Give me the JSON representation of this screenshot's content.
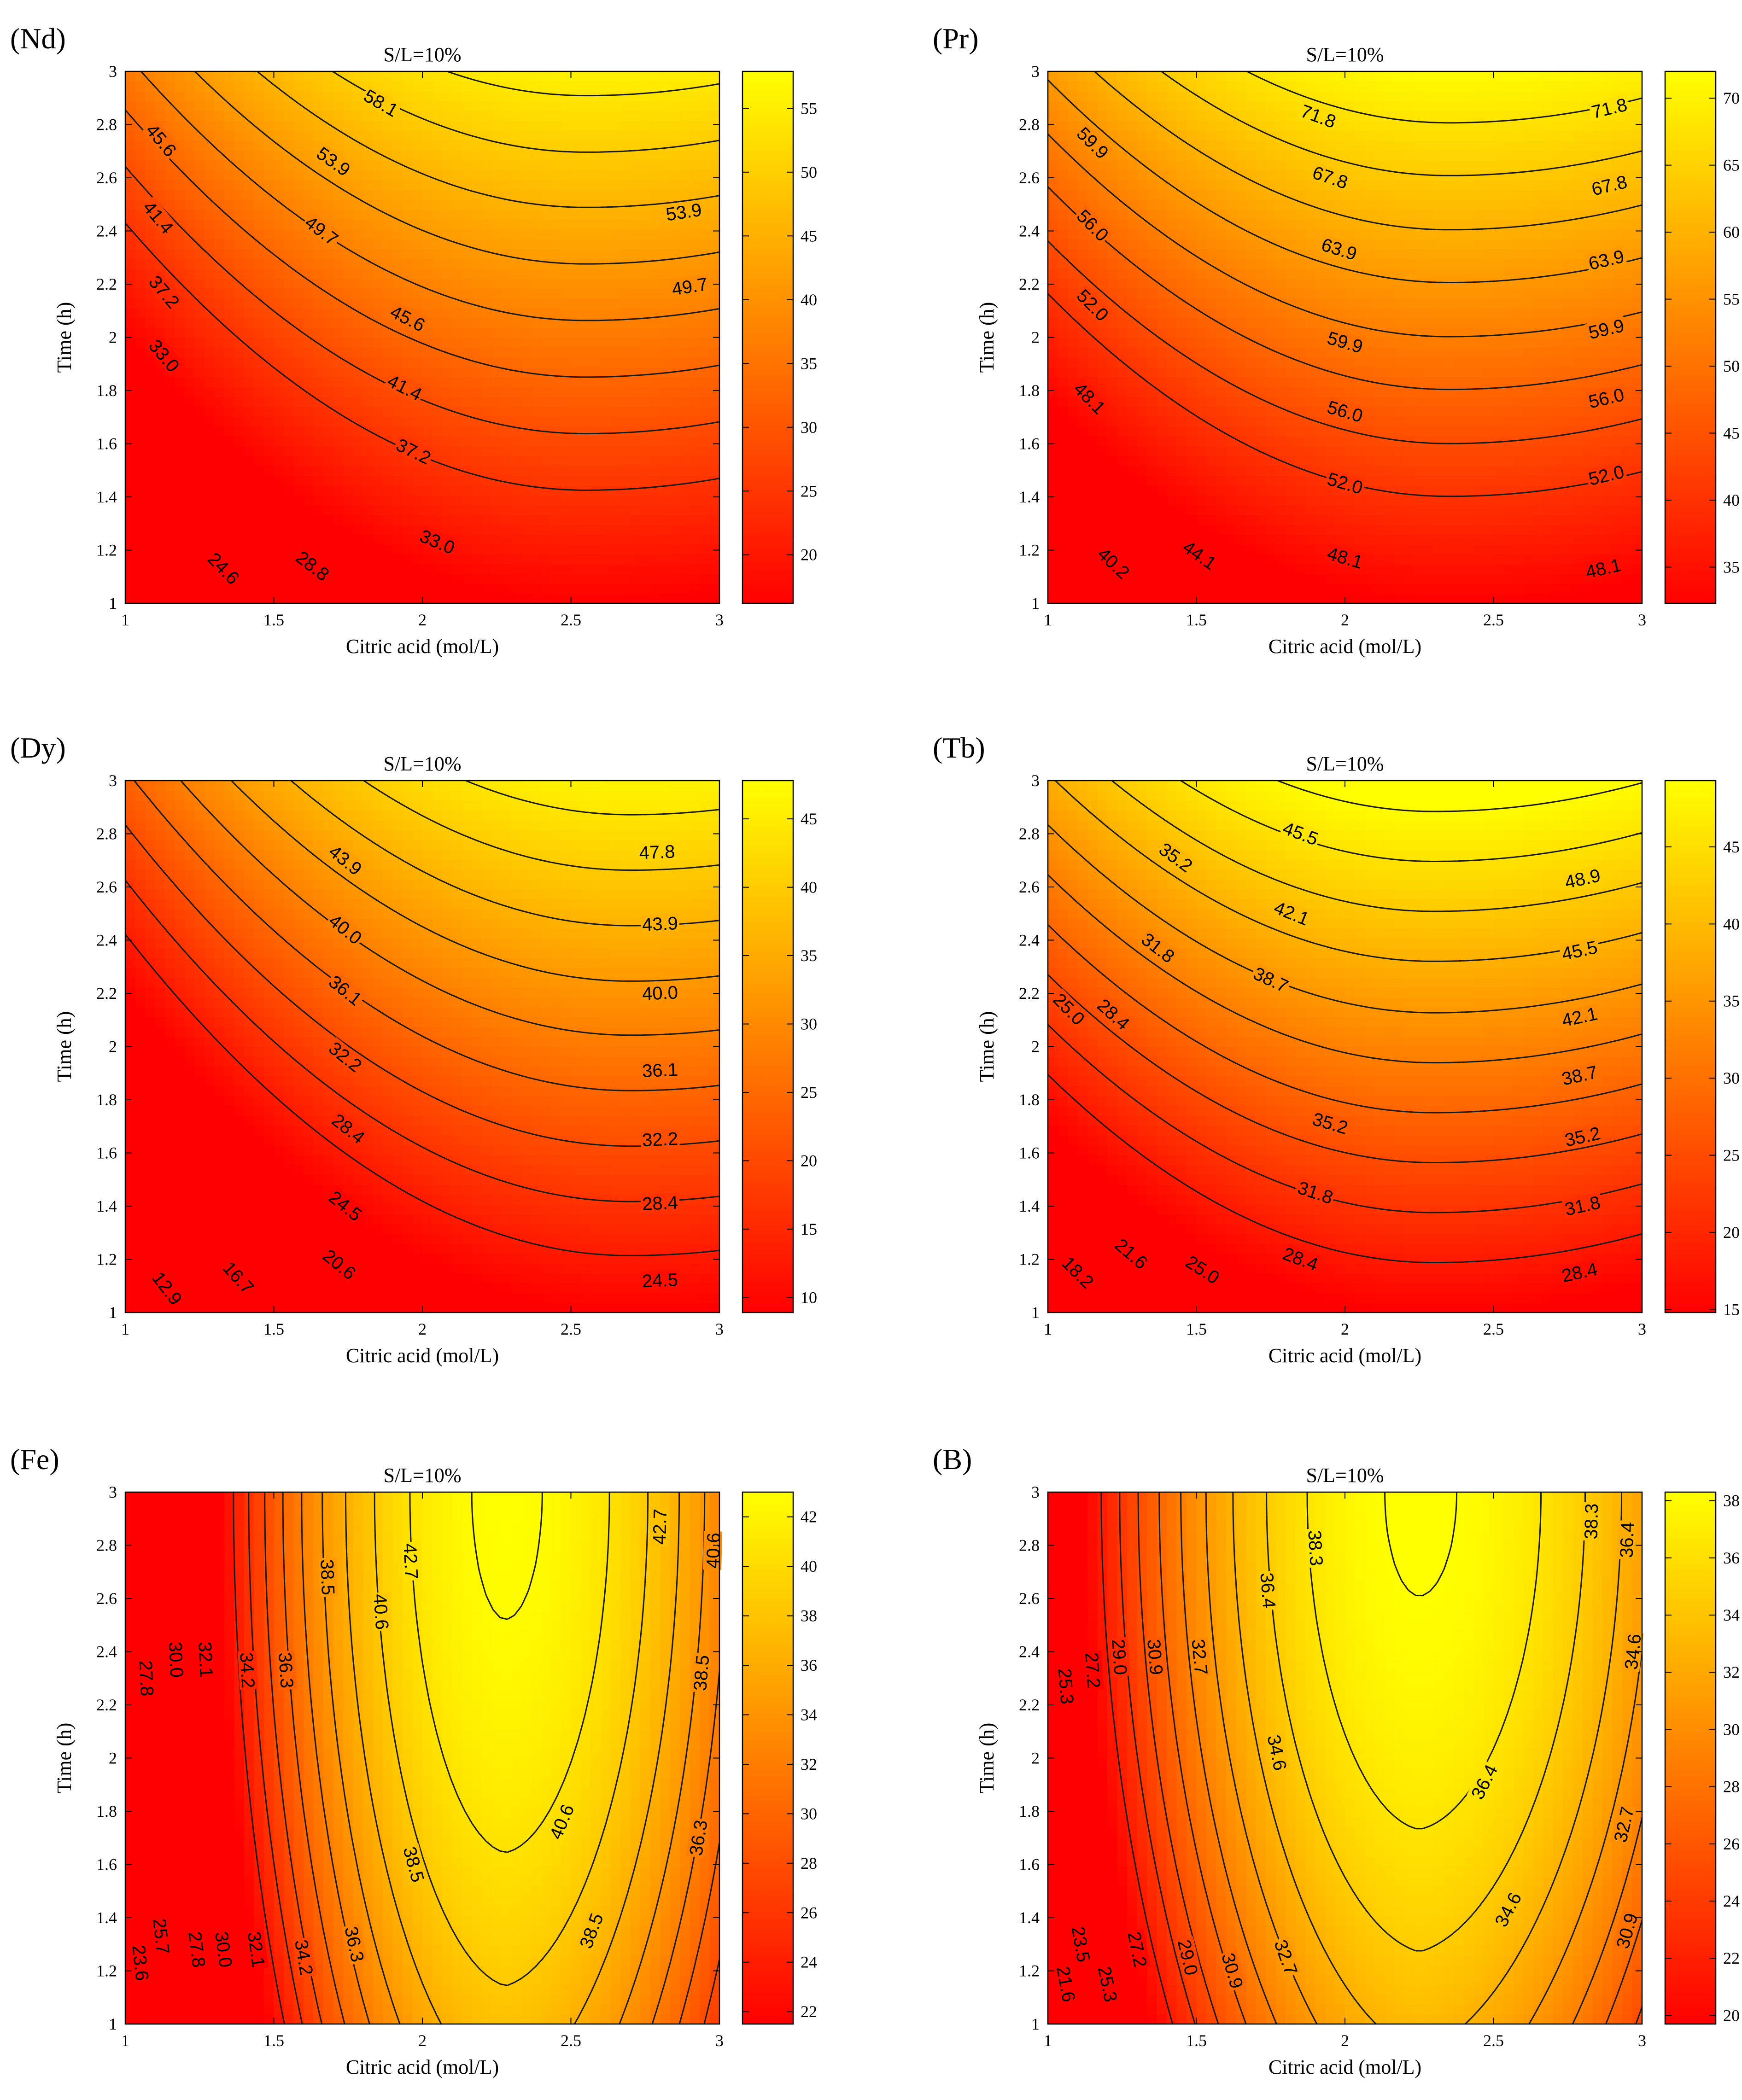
{
  "chart_data": [
    {
      "type": "contour",
      "panel_label": "(Nd)",
      "title": "S/L=10%",
      "xlabel": "Citric acid (mol/L)",
      "ylabel": "Time (h)",
      "xlim": [
        1,
        3
      ],
      "ylim": [
        1,
        3
      ],
      "x_ticks": [
        "1",
        "1.5",
        "2",
        "2.5",
        "3"
      ],
      "y_ticks": [
        "1",
        "1.2",
        "1.4",
        "1.6",
        "1.8",
        "2",
        "2.2",
        "2.4",
        "2.6",
        "2.8",
        "3"
      ],
      "model": {
        "ymin": 1.09,
        "ymax": 2.73,
        "xmin": 2.55,
        "bot": 16.2,
        "top": 55.7,
        "Eb": 24.3,
        "Et": 11.9
      },
      "contour_levels": [
        24.6,
        28.8,
        33.0,
        37.2,
        41.4,
        45.6,
        49.7,
        53.9,
        58.1
      ],
      "contour_labels": [
        {
          "text": "24.6",
          "x": 1.33,
          "y": 1.13
        },
        {
          "text": "28.8",
          "x": 1.63,
          "y": 1.14
        },
        {
          "text": "33.0",
          "x": 2.05,
          "y": 1.23
        },
        {
          "text": "37.2",
          "x": 1.97,
          "y": 1.57
        },
        {
          "text": "41.4",
          "x": 1.94,
          "y": 1.81
        },
        {
          "text": "45.6",
          "x": 1.95,
          "y": 2.07
        },
        {
          "text": "49.7",
          "x": 2.9,
          "y": 2.19
        },
        {
          "text": "53.9",
          "x": 2.88,
          "y": 2.47
        },
        {
          "text": "58.1",
          "x": 1.86,
          "y": 2.88
        },
        {
          "text": "45.6",
          "x": 1.12,
          "y": 2.74
        },
        {
          "text": "41.4",
          "x": 1.11,
          "y": 2.45
        },
        {
          "text": "37.2",
          "x": 1.13,
          "y": 2.17
        },
        {
          "text": "33.0",
          "x": 1.13,
          "y": 1.93
        },
        {
          "text": "49.7",
          "x": 1.66,
          "y": 2.4
        },
        {
          "text": "53.9",
          "x": 1.7,
          "y": 2.66
        }
      ],
      "colorbar": {
        "range": [
          16.2,
          57.9
        ],
        "ticks": [
          20,
          25,
          30,
          35,
          40,
          45,
          50,
          55
        ]
      }
    },
    {
      "type": "contour",
      "panel_label": "(Pr)",
      "title": "S/L=10%",
      "xlabel": "Citric acid (mol/L)",
      "ylabel": "Time (h)",
      "xlim": [
        1,
        3
      ],
      "ylim": [
        1,
        3
      ],
      "x_ticks": [
        "1",
        "1.5",
        "2",
        "2.5",
        "3"
      ],
      "y_ticks": [
        "1",
        "1.2",
        "1.4",
        "1.6",
        "1.8",
        "2",
        "2.2",
        "2.4",
        "2.6",
        "2.8",
        "3"
      ],
      "model": {
        "ymin": 1.05,
        "ymax": 2.72,
        "xmin": 2.35,
        "bot": 32.3,
        "top": 71.6,
        "Eb": 13.2,
        "Et": 7.1
      },
      "contour_levels": [
        40.2,
        44.1,
        48.1,
        52.0,
        56.0,
        59.9,
        63.9,
        67.8,
        71.8
      ],
      "contour_labels": [
        {
          "text": "40.2",
          "x": 1.22,
          "y": 1.15
        },
        {
          "text": "44.1",
          "x": 1.51,
          "y": 1.18
        },
        {
          "text": "48.1",
          "x": 2.0,
          "y": 1.17
        },
        {
          "text": "48.1",
          "x": 2.87,
          "y": 1.13
        },
        {
          "text": "52.0",
          "x": 2.0,
          "y": 1.45
        },
        {
          "text": "52.0",
          "x": 2.88,
          "y": 1.48
        },
        {
          "text": "56.0",
          "x": 2.0,
          "y": 1.72
        },
        {
          "text": "56.0",
          "x": 2.88,
          "y": 1.77
        },
        {
          "text": "59.9",
          "x": 2.0,
          "y": 1.98
        },
        {
          "text": "59.9",
          "x": 2.88,
          "y": 2.03
        },
        {
          "text": "63.9",
          "x": 1.98,
          "y": 2.33
        },
        {
          "text": "63.9",
          "x": 2.88,
          "y": 2.29
        },
        {
          "text": "67.8",
          "x": 1.95,
          "y": 2.6
        },
        {
          "text": "67.8",
          "x": 2.89,
          "y": 2.57
        },
        {
          "text": "71.8",
          "x": 1.91,
          "y": 2.83
        },
        {
          "text": "71.8",
          "x": 2.89,
          "y": 2.86
        },
        {
          "text": "48.1",
          "x": 1.14,
          "y": 1.77
        },
        {
          "text": "52.0",
          "x": 1.15,
          "y": 2.12
        },
        {
          "text": "56.0",
          "x": 1.15,
          "y": 2.42
        },
        {
          "text": "59.9",
          "x": 1.15,
          "y": 2.73
        }
      ],
      "colorbar": {
        "range": [
          32.3,
          72.0
        ],
        "ticks": [
          35,
          40,
          45,
          50,
          55,
          60,
          65,
          70
        ]
      }
    },
    {
      "type": "contour",
      "panel_label": "(Dy)",
      "title": "S/L=10%",
      "xlabel": "Citric acid (mol/L)",
      "ylabel": "Time (h)",
      "xlim": [
        1,
        3
      ],
      "ylim": [
        1,
        3
      ],
      "x_ticks": [
        "1",
        "1.5",
        "2",
        "2.5",
        "3"
      ],
      "y_ticks": [
        "1",
        "1.2",
        "1.4",
        "1.6",
        "1.8",
        "2",
        "2.2",
        "2.4",
        "2.6",
        "2.8",
        "3"
      ],
      "model": {
        "ymin": 1.12,
        "ymax": 2.8,
        "xmin": 2.7,
        "bot": 8.9,
        "top": 46.3,
        "Eb": 21.4,
        "Et": 11.2
      },
      "contour_levels": [
        12.9,
        16.7,
        20.6,
        24.5,
        28.4,
        32.2,
        36.1,
        40.0,
        43.9,
        47.8
      ],
      "contour_labels": [
        {
          "text": "12.9",
          "x": 1.14,
          "y": 1.09
        },
        {
          "text": "16.7",
          "x": 1.38,
          "y": 1.13
        },
        {
          "text": "20.6",
          "x": 1.72,
          "y": 1.18
        },
        {
          "text": "24.5",
          "x": 2.8,
          "y": 1.12
        },
        {
          "text": "24.5",
          "x": 1.74,
          "y": 1.4
        },
        {
          "text": "28.4",
          "x": 2.8,
          "y": 1.41
        },
        {
          "text": "28.4",
          "x": 1.75,
          "y": 1.69
        },
        {
          "text": "32.2",
          "x": 2.8,
          "y": 1.65
        },
        {
          "text": "32.2",
          "x": 1.74,
          "y": 1.96
        },
        {
          "text": "36.1",
          "x": 2.8,
          "y": 1.91
        },
        {
          "text": "36.1",
          "x": 1.74,
          "y": 2.21
        },
        {
          "text": "40.0",
          "x": 2.8,
          "y": 2.2
        },
        {
          "text": "40.0",
          "x": 1.74,
          "y": 2.44
        },
        {
          "text": "43.9",
          "x": 2.8,
          "y": 2.46
        },
        {
          "text": "43.9",
          "x": 1.74,
          "y": 2.7
        },
        {
          "text": "47.8",
          "x": 2.79,
          "y": 2.73
        }
      ],
      "colorbar": {
        "range": [
          8.9,
          47.8
        ],
        "ticks": [
          10,
          15,
          20,
          25,
          30,
          35,
          40,
          45
        ]
      }
    },
    {
      "type": "contour",
      "panel_label": "(Tb)",
      "title": "S/L=10%",
      "xlabel": "Citric acid (mol/L)",
      "ylabel": "Time (h)",
      "xlim": [
        1,
        3
      ],
      "ylim": [
        1,
        3
      ],
      "x_ticks": [
        "1",
        "1.5",
        "2",
        "2.5",
        "3"
      ],
      "y_ticks": [
        "1",
        "1.2",
        "1.4",
        "1.6",
        "1.8",
        "2",
        "2.2",
        "2.4",
        "2.6",
        "2.8",
        "3"
      ],
      "model": {
        "ymin": 1.08,
        "ymax": 2.75,
        "xmin": 2.3,
        "bot": 14.8,
        "top": 51.0,
        "Eb": 28.6,
        "Et": 17.2
      },
      "contour_levels": [
        18.2,
        21.6,
        25.0,
        28.4,
        31.8,
        35.2,
        38.7,
        42.1,
        45.5,
        48.9
      ],
      "contour_labels": [
        {
          "text": "18.2",
          "x": 1.1,
          "y": 1.15
        },
        {
          "text": "21.6",
          "x": 1.28,
          "y": 1.22
        },
        {
          "text": "25.0",
          "x": 1.52,
          "y": 1.16
        },
        {
          "text": "28.4",
          "x": 1.85,
          "y": 1.2
        },
        {
          "text": "28.4",
          "x": 2.79,
          "y": 1.15
        },
        {
          "text": "31.8",
          "x": 1.9,
          "y": 1.45
        },
        {
          "text": "31.8",
          "x": 2.8,
          "y": 1.4
        },
        {
          "text": "35.2",
          "x": 1.95,
          "y": 1.71
        },
        {
          "text": "35.2",
          "x": 2.8,
          "y": 1.66
        },
        {
          "text": "38.7",
          "x": 2.79,
          "y": 1.89
        },
        {
          "text": "42.1",
          "x": 2.79,
          "y": 2.11
        },
        {
          "text": "45.5",
          "x": 2.79,
          "y": 2.36
        },
        {
          "text": "48.9",
          "x": 2.8,
          "y": 2.63
        },
        {
          "text": "25.0",
          "x": 1.07,
          "y": 2.14
        },
        {
          "text": "28.4",
          "x": 1.22,
          "y": 2.12
        },
        {
          "text": "31.8",
          "x": 1.37,
          "y": 2.37
        },
        {
          "text": "35.2",
          "x": 1.43,
          "y": 2.71
        },
        {
          "text": "38.7",
          "x": 1.75,
          "y": 2.25
        },
        {
          "text": "42.1",
          "x": 1.82,
          "y": 2.5
        },
        {
          "text": "45.5",
          "x": 1.85,
          "y": 2.8
        }
      ],
      "colorbar": {
        "range": [
          14.8,
          49.3
        ],
        "ticks": [
          15,
          20,
          25,
          30,
          35,
          40,
          45
        ]
      }
    },
    {
      "type": "contour",
      "panel_label": "(Fe)",
      "title": "S/L=10%",
      "xlabel": "Citric acid (mol/L)",
      "ylabel": "Time (h)",
      "xlim": [
        1,
        3
      ],
      "ylim": [
        1,
        3
      ],
      "x_ticks": [
        "1",
        "1.5",
        "2",
        "2.5",
        "3"
      ],
      "y_ticks": [
        "1",
        "1.2",
        "1.4",
        "1.6",
        "1.8",
        "2",
        "2.2",
        "2.4",
        "2.6",
        "2.8",
        "3"
      ],
      "model": {
        "x0": 2.28,
        "y0": 2.05,
        "max": 43.0,
        "a": 19.6,
        "b": 1.45,
        "c": 0.32
      },
      "contour_levels": [
        23.6,
        25.7,
        27.8,
        30.0,
        32.1,
        34.2,
        36.3,
        38.5,
        40.6,
        42.7
      ],
      "contour_labels": [
        {
          "text": "23.6",
          "x": 1.05,
          "y": 1.23
        },
        {
          "text": "25.7",
          "x": 1.12,
          "y": 1.33
        },
        {
          "text": "27.8",
          "x": 1.24,
          "y": 1.28
        },
        {
          "text": "30.0",
          "x": 1.33,
          "y": 1.28
        },
        {
          "text": "32.1",
          "x": 1.44,
          "y": 1.28
        },
        {
          "text": "34.2",
          "x": 1.6,
          "y": 1.25
        },
        {
          "text": "36.3",
          "x": 1.77,
          "y": 1.3
        },
        {
          "text": "38.5",
          "x": 2.57,
          "y": 1.35
        },
        {
          "text": "38.5",
          "x": 1.97,
          "y": 1.6
        },
        {
          "text": "40.6",
          "x": 2.47,
          "y": 1.76
        },
        {
          "text": "36.3",
          "x": 2.93,
          "y": 1.7
        },
        {
          "text": "38.5",
          "x": 2.94,
          "y": 2.32
        },
        {
          "text": "40.6",
          "x": 2.98,
          "y": 2.78
        },
        {
          "text": "42.7",
          "x": 2.8,
          "y": 2.87
        },
        {
          "text": "42.7",
          "x": 1.96,
          "y": 2.74
        },
        {
          "text": "40.6",
          "x": 1.86,
          "y": 2.55
        },
        {
          "text": "38.5",
          "x": 1.68,
          "y": 2.68
        },
        {
          "text": "36.3",
          "x": 1.54,
          "y": 2.33
        },
        {
          "text": "34.2",
          "x": 1.41,
          "y": 2.33
        },
        {
          "text": "32.1",
          "x": 1.27,
          "y": 2.37
        },
        {
          "text": "30.0",
          "x": 1.17,
          "y": 2.37
        },
        {
          "text": "27.8",
          "x": 1.07,
          "y": 2.3
        }
      ],
      "colorbar": {
        "range": [
          21.5,
          43.0
        ],
        "ticks": [
          22,
          24,
          26,
          28,
          30,
          32,
          34,
          36,
          38,
          40,
          42
        ]
      }
    },
    {
      "type": "contour",
      "panel_label": "(B)",
      "title": "S/L=10%",
      "xlabel": "Citric acid (mol/L)",
      "ylabel": "Time (h)",
      "xlim": [
        1,
        3
      ],
      "ylim": [
        1,
        3
      ],
      "x_ticks": [
        "1",
        "1.5",
        "2",
        "2.5",
        "3"
      ],
      "y_ticks": [
        "1",
        "1.2",
        "1.4",
        "1.6",
        "1.8",
        "2",
        "2.2",
        "2.4",
        "2.6",
        "2.8",
        "3"
      ],
      "model": {
        "x0": 2.25,
        "y0": 2.1,
        "max": 38.5,
        "a": 12.5,
        "b": 1.45,
        "c": 0.28
      },
      "contour_levels": [
        21.6,
        23.5,
        25.3,
        27.2,
        29.0,
        30.9,
        32.7,
        34.6,
        36.4,
        38.3
      ],
      "contour_labels": [
        {
          "text": "21.6",
          "x": 1.06,
          "y": 1.15
        },
        {
          "text": "23.5",
          "x": 1.11,
          "y": 1.3
        },
        {
          "text": "25.3",
          "x": 1.2,
          "y": 1.15
        },
        {
          "text": "27.2",
          "x": 1.3,
          "y": 1.28
        },
        {
          "text": "29.0",
          "x": 1.47,
          "y": 1.25
        },
        {
          "text": "30.9",
          "x": 1.62,
          "y": 1.2
        },
        {
          "text": "32.7",
          "x": 1.8,
          "y": 1.25
        },
        {
          "text": "34.6",
          "x": 2.55,
          "y": 1.43
        },
        {
          "text": "36.4",
          "x": 2.47,
          "y": 1.91
        },
        {
          "text": "30.9",
          "x": 2.95,
          "y": 1.35
        },
        {
          "text": "32.7",
          "x": 2.94,
          "y": 1.75
        },
        {
          "text": "34.6",
          "x": 2.97,
          "y": 2.4
        },
        {
          "text": "36.4",
          "x": 2.95,
          "y": 2.82
        },
        {
          "text": "38.3",
          "x": 2.83,
          "y": 2.89
        },
        {
          "text": "38.3",
          "x": 1.9,
          "y": 2.79
        },
        {
          "text": "36.4",
          "x": 1.74,
          "y": 2.63
        },
        {
          "text": "34.6",
          "x": 1.77,
          "y": 2.02
        },
        {
          "text": "32.7",
          "x": 1.51,
          "y": 2.38
        },
        {
          "text": "30.9",
          "x": 1.36,
          "y": 2.38
        },
        {
          "text": "29.0",
          "x": 1.24,
          "y": 2.38
        },
        {
          "text": "27.2",
          "x": 1.15,
          "y": 2.33
        },
        {
          "text": "25.3",
          "x": 1.06,
          "y": 2.27
        }
      ],
      "colorbar": {
        "range": [
          19.7,
          38.3
        ],
        "ticks": [
          20,
          22,
          24,
          26,
          28,
          30,
          32,
          34,
          36,
          38
        ]
      }
    }
  ]
}
